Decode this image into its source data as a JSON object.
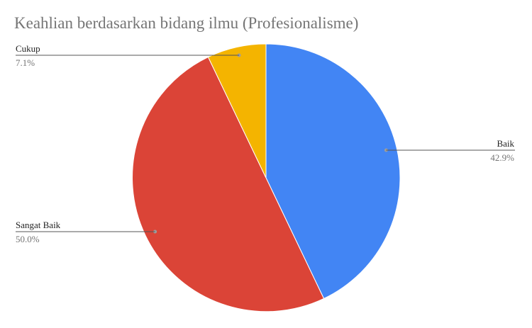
{
  "chart_data": {
    "type": "pie",
    "title": "Keahlian berdasarkan bidang ilmu (Profesionalisme)",
    "slices": [
      {
        "label": "Baik",
        "value": 42.9,
        "percent_label": "42.9%",
        "color": "#4285f4"
      },
      {
        "label": "Sangat Baik",
        "value": 50.0,
        "percent_label": "50.0%",
        "color": "#db4437"
      },
      {
        "label": "Cukup",
        "value": 7.1,
        "percent_label": "7.1%",
        "color": "#f4b400"
      }
    ]
  }
}
